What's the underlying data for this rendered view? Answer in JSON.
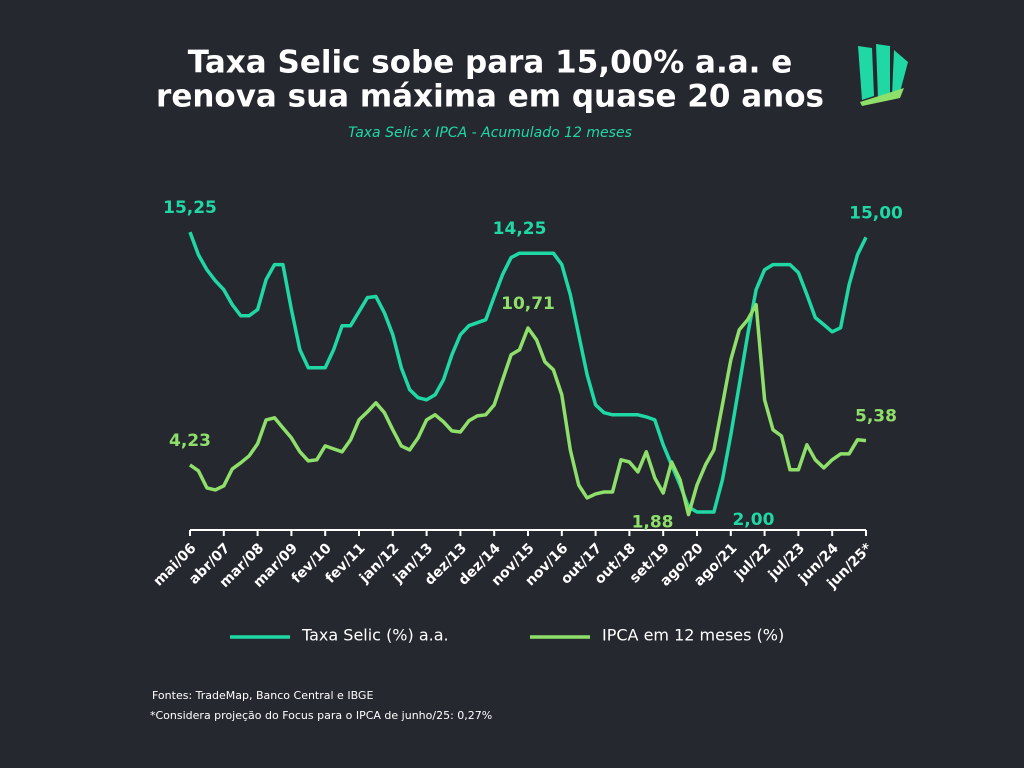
{
  "chart_data": {
    "type": "line",
    "title": [
      "Taxa Selic sobe para 15,00% a.a. e",
      "renova sua máxima em quase 20 anos"
    ],
    "subtitle": "Taxa Selic x IPCA - Acumulado 12 meses",
    "categories": [
      "mai/06",
      null,
      null,
      null,
      "abr/07",
      null,
      null,
      null,
      "mar/08",
      null,
      null,
      null,
      "mar/09",
      null,
      null,
      null,
      "fev/10",
      null,
      null,
      null,
      "fev/11",
      null,
      null,
      null,
      "jan/12",
      null,
      null,
      null,
      "jan/13",
      null,
      null,
      null,
      "dez/13",
      null,
      null,
      null,
      "dez/14",
      null,
      null,
      null,
      "nov/15",
      null,
      null,
      null,
      "nov/16",
      null,
      null,
      null,
      "out/17",
      null,
      null,
      null,
      "out/18",
      null,
      null,
      null,
      "set/19",
      null,
      null,
      null,
      "ago/20",
      null,
      null,
      null,
      "ago/21",
      null,
      null,
      null,
      "jul/22",
      null,
      null,
      null,
      "jul/23",
      null,
      null,
      null,
      "jun/24",
      null,
      null,
      null,
      "jun/25*"
    ],
    "series": [
      {
        "name": "Taxa Selic (%) a.a.",
        "color": "#1fd8a4",
        "values": [
          15.25,
          14.18,
          13.47,
          12.95,
          12.52,
          11.81,
          11.29,
          11.29,
          11.58,
          13.0,
          13.71,
          13.71,
          11.58,
          9.68,
          8.83,
          8.83,
          8.83,
          9.68,
          10.82,
          10.82,
          11.48,
          12.15,
          12.2,
          11.43,
          10.39,
          8.83,
          7.79,
          7.41,
          7.31,
          7.55,
          8.26,
          9.44,
          10.39,
          10.82,
          10.96,
          11.1,
          12.19,
          13.24,
          14.04,
          14.25,
          14.25,
          14.25,
          14.25,
          14.25,
          13.71,
          12.29,
          10.39,
          8.5,
          7.07,
          6.7,
          6.6,
          6.6,
          6.6,
          6.6,
          6.5,
          6.36,
          5.18,
          4.23,
          3.28,
          2.24,
          2.0,
          2.0,
          2.0,
          3.52,
          5.65,
          8.02,
          10.39,
          12.52,
          13.47,
          13.71,
          13.71,
          13.71,
          13.33,
          12.29,
          11.2,
          10.87,
          10.53,
          10.72,
          12.76,
          14.18,
          15.0
        ],
        "value_labels": [
          "15,25",
          null,
          null,
          null,
          null,
          null,
          null,
          null,
          null,
          null,
          null,
          null,
          null,
          null,
          null,
          null,
          null,
          null,
          null,
          null,
          null,
          null,
          null,
          null,
          null,
          null,
          null,
          null,
          null,
          null,
          null,
          null,
          null,
          null,
          null,
          null,
          null,
          null,
          null,
          "14,25",
          null,
          null,
          null,
          null,
          null,
          null,
          null,
          null,
          null,
          null,
          null,
          null,
          null,
          null,
          null,
          null,
          null,
          null,
          null,
          null,
          null,
          "2,00",
          null,
          null,
          null,
          null,
          null,
          null,
          null,
          null,
          null,
          null,
          null,
          null,
          null,
          null,
          null,
          null,
          null,
          null,
          "15,00"
        ]
      },
      {
        "name": "IPCA em 12 meses (%)",
        "color": "#8ee06a",
        "values": [
          4.23,
          3.95,
          3.14,
          3.05,
          3.24,
          4.04,
          4.33,
          4.66,
          5.23,
          6.36,
          6.46,
          5.98,
          5.51,
          4.85,
          4.42,
          4.47,
          5.13,
          4.99,
          4.85,
          5.42,
          6.36,
          6.74,
          7.17,
          6.7,
          5.89,
          5.13,
          4.94,
          5.51,
          6.36,
          6.6,
          6.27,
          5.84,
          5.79,
          6.32,
          6.55,
          6.6,
          7.07,
          8.26,
          9.44,
          9.68,
          10.71,
          10.15,
          9.11,
          8.73,
          7.55,
          4.94,
          3.28,
          2.67,
          2.86,
          2.95,
          2.95,
          4.47,
          4.37,
          3.9,
          4.85,
          3.61,
          2.9,
          4.37,
          3.52,
          1.88,
          3.28,
          4.23,
          4.94,
          7.07,
          9.2,
          10.63,
          11.1,
          11.81,
          7.31,
          5.89,
          5.6,
          4.0,
          4.0,
          5.18,
          4.47,
          4.09,
          4.47,
          4.75,
          4.75,
          5.42,
          5.38
        ],
        "value_labels": [
          "4,23",
          null,
          null,
          null,
          null,
          null,
          null,
          null,
          null,
          null,
          null,
          null,
          null,
          null,
          null,
          null,
          null,
          null,
          null,
          null,
          null,
          null,
          null,
          null,
          null,
          null,
          null,
          null,
          null,
          null,
          null,
          null,
          null,
          null,
          null,
          null,
          null,
          null,
          null,
          null,
          "10,71",
          null,
          null,
          null,
          null,
          null,
          null,
          null,
          null,
          null,
          null,
          null,
          null,
          null,
          null,
          null,
          null,
          null,
          null,
          "1,88",
          null,
          null,
          null,
          null,
          null,
          null,
          null,
          null,
          null,
          null,
          null,
          null,
          null,
          null,
          null,
          null,
          null,
          null,
          null,
          null,
          "5,38"
        ]
      }
    ],
    "ylim": [
      1.15,
      17.24
    ],
    "notes": [
      "Fontes: TradeMap, Banco Central e IBGE",
      "*Considera projeção do Focus para o IPCA de junho/25: 0,27%"
    ]
  }
}
